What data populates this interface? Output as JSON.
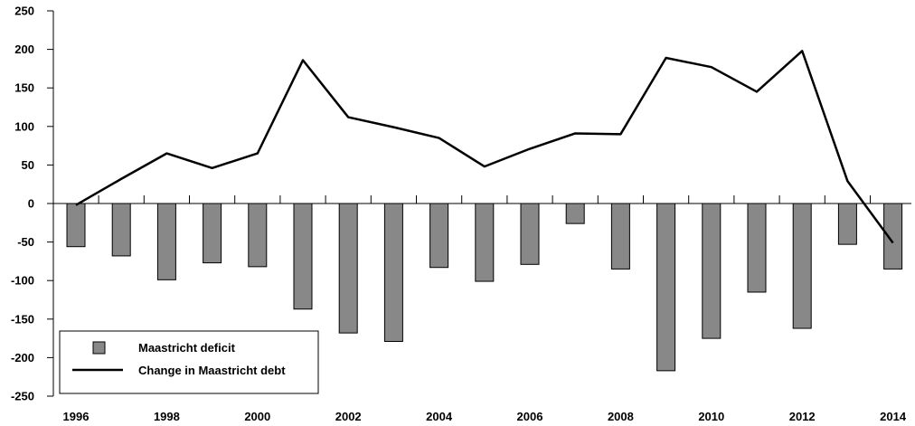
{
  "chart_data": {
    "type": "bar+line",
    "x": [
      1996,
      1997,
      1998,
      1999,
      2000,
      2001,
      2002,
      2003,
      2004,
      2005,
      2006,
      2007,
      2008,
      2009,
      2010,
      2011,
      2012,
      2013,
      2014
    ],
    "x_tick_labels": [
      "1996",
      "1998",
      "2000",
      "2002",
      "2004",
      "2006",
      "2008",
      "2010",
      "2012",
      "2014"
    ],
    "y_tick_labels": [
      "250",
      "200",
      "150",
      "100",
      "50",
      "0",
      "-50",
      "-100",
      "-150",
      "-200",
      "-250"
    ],
    "ylim": [
      -250,
      250
    ],
    "series": [
      {
        "name": "Maastricht deficit",
        "kind": "bar",
        "color": "#888888",
        "values": [
          -56,
          -68,
          -99,
          -77,
          -82,
          -137,
          -168,
          -179,
          -83,
          -101,
          -79,
          -26,
          -85,
          -217,
          -175,
          -115,
          -162,
          -53,
          -85
        ]
      },
      {
        "name": "Change in Maastricht debt",
        "kind": "line",
        "color": "#000000",
        "values": [
          -2,
          32,
          65,
          46,
          65,
          186,
          112,
          99,
          85,
          48,
          71,
          91,
          90,
          189,
          177,
          145,
          198,
          29,
          -51
        ]
      }
    ],
    "legend": {
      "position": "bottom-left",
      "items": [
        "Maastricht deficit",
        "Change in Maastricht debt"
      ]
    },
    "grid": false
  }
}
